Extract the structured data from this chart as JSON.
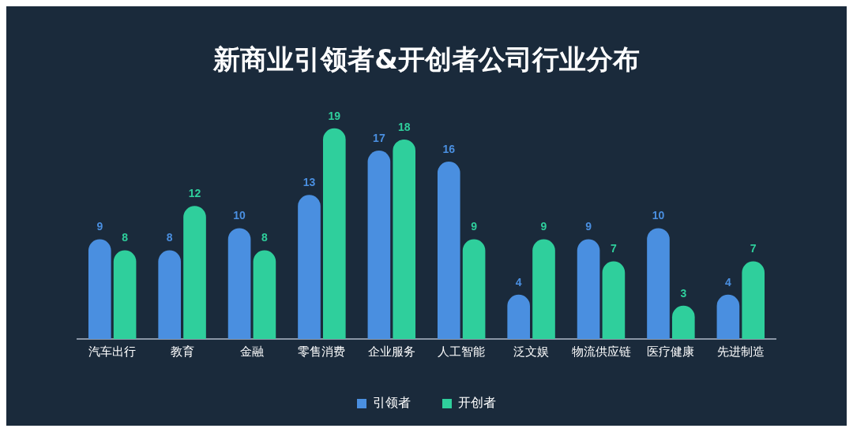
{
  "chart_data": {
    "type": "bar",
    "title": "新商业引领者&开创者公司行业分布",
    "categories": [
      "汽车出行",
      "教育",
      "金融",
      "零售消费",
      "企业服务",
      "人工智能",
      "泛文娱",
      "物流供应链",
      "医疗健康",
      "先进制造"
    ],
    "series": [
      {
        "name": "引领者",
        "color": "#4a8fe0",
        "values": [
          9,
          8,
          10,
          13,
          17,
          16,
          4,
          9,
          10,
          4
        ]
      },
      {
        "name": "开创者",
        "color": "#2fcf9c",
        "values": [
          8,
          12,
          8,
          19,
          18,
          9,
          9,
          7,
          3,
          7
        ]
      }
    ],
    "data_labels": true,
    "legend": "bottom",
    "grid": false
  }
}
